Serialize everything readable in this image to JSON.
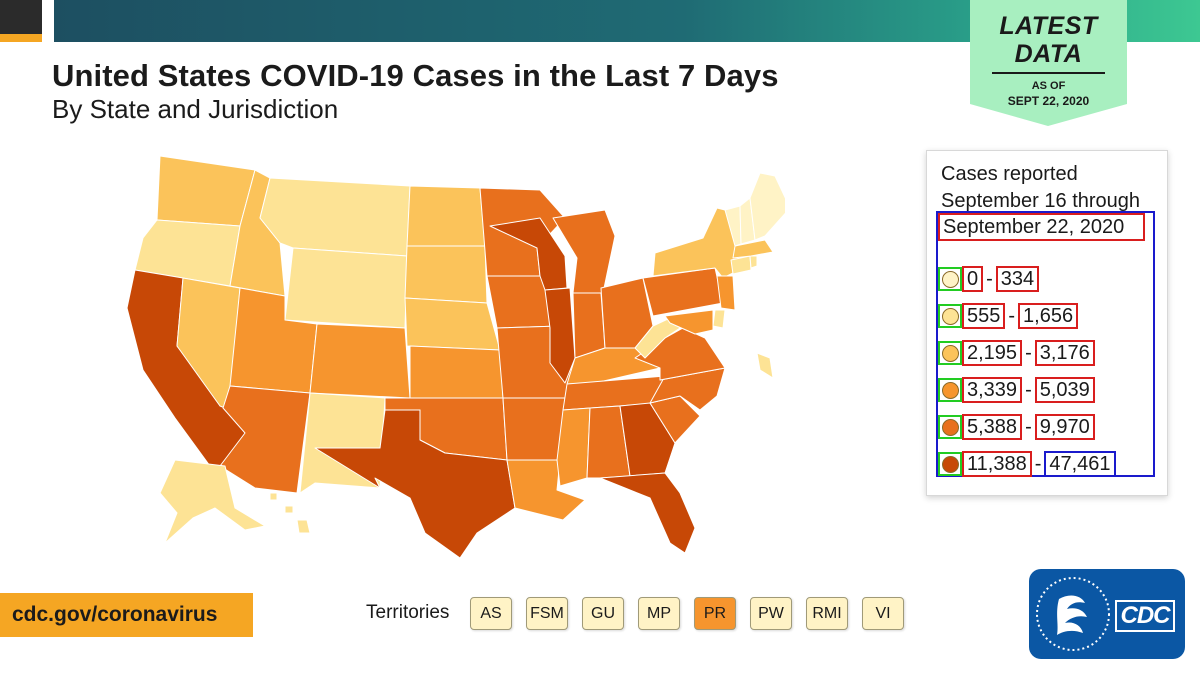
{
  "header": {
    "title": "United States COVID-19 Cases in the Last 7 Days",
    "subtitle": "By State and Jurisdiction"
  },
  "badge": {
    "line1": "LATEST",
    "line2": "DATA",
    "as_of": "AS OF",
    "date": "SEPT 22, 2020"
  },
  "colors": {
    "bin1": "#fff3c6",
    "bin2": "#fde395",
    "bin3": "#fbc35a",
    "bin4": "#f6952e",
    "bin5": "#e8701d",
    "bin6": "#c74806",
    "accent": "#f5a623",
    "brand": "#0b57a4"
  },
  "legend": {
    "heading_line1": "Cases reported",
    "heading_line2": "September 16 through",
    "date": "September 22, 2020",
    "ranges": [
      {
        "min": "0",
        "max": "334",
        "color": "#fff3c6"
      },
      {
        "min": "555",
        "max": "1,656",
        "color": "#fde395"
      },
      {
        "min": "2,195",
        "max": "3,176",
        "color": "#fbc35a"
      },
      {
        "min": "3,339",
        "max": "5,039",
        "color": "#f6952e"
      },
      {
        "min": "5,388",
        "max": "9,970",
        "color": "#e8701d"
      },
      {
        "min": "11,388",
        "max": "47,461",
        "color": "#c74806"
      }
    ]
  },
  "footer": {
    "url": "cdc.gov/coronavirus",
    "territories_label": "Territories",
    "territories": [
      {
        "code": "AS",
        "color": "#fff3c6"
      },
      {
        "code": "FSM",
        "color": "#fff3c6"
      },
      {
        "code": "GU",
        "color": "#fff3c6"
      },
      {
        "code": "MP",
        "color": "#fff3c6"
      },
      {
        "code": "PR",
        "color": "#f6952e"
      },
      {
        "code": "PW",
        "color": "#fff3c6"
      },
      {
        "code": "RMI",
        "color": "#fff3c6"
      },
      {
        "code": "VI",
        "color": "#fff3c6"
      }
    ]
  },
  "logo": {
    "text": "CDC"
  },
  "map": {
    "states": [
      {
        "name": "WA",
        "bin": 3
      },
      {
        "name": "OR",
        "bin": 2
      },
      {
        "name": "CA",
        "bin": 6
      },
      {
        "name": "NV",
        "bin": 3
      },
      {
        "name": "ID",
        "bin": 3
      },
      {
        "name": "MT",
        "bin": 2
      },
      {
        "name": "WY",
        "bin": 2
      },
      {
        "name": "UT",
        "bin": 4
      },
      {
        "name": "AZ",
        "bin": 5
      },
      {
        "name": "CO",
        "bin": 4
      },
      {
        "name": "NM",
        "bin": 2
      },
      {
        "name": "ND",
        "bin": 3
      },
      {
        "name": "SD",
        "bin": 3
      },
      {
        "name": "NE",
        "bin": 3
      },
      {
        "name": "KS",
        "bin": 4
      },
      {
        "name": "OK",
        "bin": 5
      },
      {
        "name": "TX",
        "bin": 6
      },
      {
        "name": "MN",
        "bin": 5
      },
      {
        "name": "IA",
        "bin": 5
      },
      {
        "name": "MO",
        "bin": 5
      },
      {
        "name": "AR",
        "bin": 5
      },
      {
        "name": "LA",
        "bin": 4
      },
      {
        "name": "WI",
        "bin": 6
      },
      {
        "name": "IL",
        "bin": 6
      },
      {
        "name": "MI",
        "bin": 5
      },
      {
        "name": "IN",
        "bin": 5
      },
      {
        "name": "OH",
        "bin": 5
      },
      {
        "name": "KY",
        "bin": 4
      },
      {
        "name": "TN",
        "bin": 5
      },
      {
        "name": "MS",
        "bin": 4
      },
      {
        "name": "AL",
        "bin": 5
      },
      {
        "name": "GA",
        "bin": 6
      },
      {
        "name": "FL",
        "bin": 6
      },
      {
        "name": "SC",
        "bin": 5
      },
      {
        "name": "NC",
        "bin": 5
      },
      {
        "name": "VA",
        "bin": 5
      },
      {
        "name": "WV",
        "bin": 2
      },
      {
        "name": "PA",
        "bin": 5
      },
      {
        "name": "NY",
        "bin": 3
      },
      {
        "name": "NJ",
        "bin": 4
      },
      {
        "name": "DE",
        "bin": 2
      },
      {
        "name": "MD",
        "bin": 4
      },
      {
        "name": "CT",
        "bin": 2
      },
      {
        "name": "RI",
        "bin": 2
      },
      {
        "name": "MA",
        "bin": 3
      },
      {
        "name": "VT",
        "bin": 1
      },
      {
        "name": "NH",
        "bin": 1
      },
      {
        "name": "ME",
        "bin": 1
      },
      {
        "name": "AK",
        "bin": 2
      },
      {
        "name": "HI",
        "bin": 2
      },
      {
        "name": "DC",
        "bin": 2
      }
    ]
  }
}
